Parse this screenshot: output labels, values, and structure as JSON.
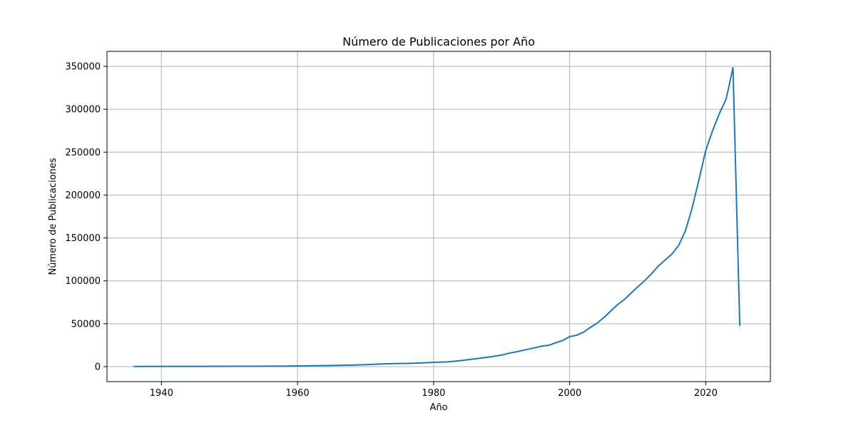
{
  "chart_data": {
    "type": "line",
    "title": "Número de Publicaciones por Año",
    "xlabel": "Año",
    "ylabel": "Número de Publicaciones",
    "xlim": [
      1932,
      2029.5
    ],
    "ylim": [
      -17500,
      367500
    ],
    "xticks": [
      1940,
      1960,
      1980,
      2000,
      2020
    ],
    "yticks": [
      0,
      50000,
      100000,
      150000,
      200000,
      250000,
      300000,
      350000
    ],
    "grid": true,
    "color": "#1f77b4",
    "series": [
      {
        "x": [
          1936,
          1940,
          1945,
          1950,
          1955,
          1958,
          1960,
          1962,
          1965,
          1968,
          1970,
          1972,
          1974,
          1976,
          1978,
          1980,
          1982,
          1984,
          1986,
          1988,
          1990,
          1991,
          1992,
          1994,
          1996,
          1997,
          1998,
          1999,
          2000,
          2001,
          2002,
          2003,
          2004,
          2005,
          2006,
          2007,
          2008,
          2009,
          2010,
          2011,
          2012,
          2013,
          2014,
          2015,
          2016,
          2017,
          2018,
          2019,
          2020,
          2021,
          2022,
          2023,
          2024,
          2025
        ],
        "y": [
          200,
          250,
          300,
          350,
          500,
          600,
          800,
          1000,
          1300,
          1800,
          2200,
          3000,
          3500,
          3700,
          4200,
          5000,
          5500,
          7000,
          9000,
          11000,
          13500,
          15500,
          17000,
          20500,
          24000,
          25000,
          28000,
          30500,
          35000,
          36500,
          40000,
          45500,
          50500,
          57000,
          64500,
          72000,
          78000,
          85500,
          93000,
          100000,
          108000,
          117000,
          124000,
          131000,
          141000,
          158000,
          185000,
          218000,
          252000,
          275000,
          295000,
          312000,
          348500,
          48000
        ]
      }
    ]
  }
}
